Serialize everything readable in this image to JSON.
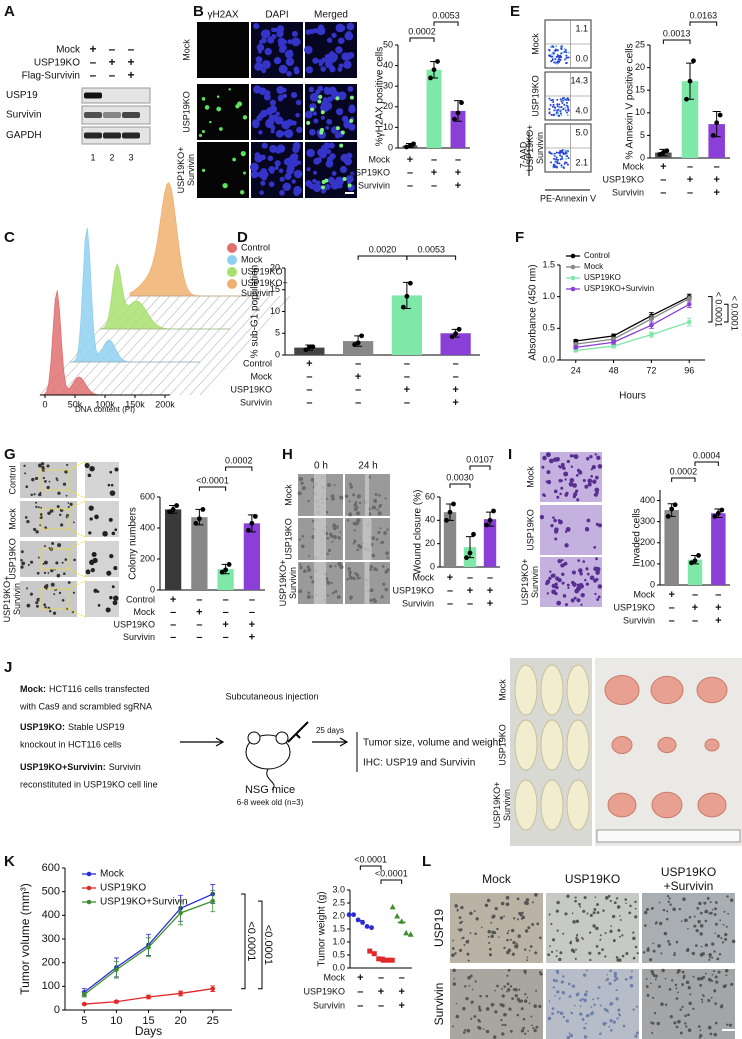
{
  "panel_labels": [
    "A",
    "B",
    "C",
    "D",
    "E",
    "F",
    "G",
    "H",
    "I",
    "J",
    "K",
    "L"
  ],
  "blot": {
    "rows": [
      {
        "label": "Mock",
        "signs": [
          "+",
          "–",
          "–"
        ]
      },
      {
        "label": "USP19KO",
        "signs": [
          "–",
          "+",
          "+"
        ]
      },
      {
        "label": "Flag-Survivin",
        "signs": [
          "–",
          "–",
          "+"
        ]
      }
    ],
    "bands": [
      "USP19",
      "Survivin",
      "GAPDH"
    ],
    "lanes": [
      1,
      2,
      3
    ]
  },
  "imaging": {
    "columns": [
      "γH2AX",
      "DAPI",
      "Merged"
    ],
    "rows": [
      "Mock",
      "USP19KO",
      [
        "USP19KO+",
        "Survivin"
      ]
    ]
  },
  "flow": {
    "rows": [
      {
        "label": "Mock",
        "upper": "1.1",
        "lower": "0.0"
      },
      {
        "label": "USP19KO",
        "upper": "14.3",
        "lower": "4.0"
      },
      {
        "label": [
          "USP19KO+",
          "Survivin"
        ],
        "upper": "5.0",
        "lower": "2.1"
      }
    ],
    "ylabel": "7-AAD",
    "xlabel": "PE-Annexin V"
  },
  "colony_images": {
    "rows": [
      "Control",
      "Mock",
      "USP19KO",
      [
        "USP19KO+",
        "Survivin"
      ]
    ]
  },
  "wound_images": {
    "columns": [
      "0 h",
      "24 h"
    ],
    "rows": [
      "Mock",
      "USP19KO",
      [
        "USP19KO+",
        "Survivin"
      ]
    ]
  },
  "invasion_images": {
    "rows": [
      "Mock",
      "USP19KO",
      [
        "USP19KO+",
        "Survivin"
      ]
    ]
  },
  "schematic": {
    "groups": [
      {
        "head": "Mock:",
        "lines": [
          "HCT116 cells transfected",
          "with Cas9 and scrambled sgRNA"
        ]
      },
      {
        "head": "USP19KO:",
        "lines": [
          "Stable USP19",
          "knockout in HCT116 cells"
        ]
      },
      {
        "head": "USP19KO+Survivin:",
        "lines": [
          "Survivin",
          "reconstituted in USP19KO cell line"
        ]
      }
    ],
    "injection": "Subcutaneous injection",
    "mice": "NSG mice",
    "age": "6-8 week old (n=3)",
    "duration": "25 days",
    "outcomes": [
      "Tumor size, volume and weight",
      "IHC: USP19 and Survivin"
    ],
    "photo_rows": [
      "Mock",
      "USP19KO",
      [
        "USP19KO+",
        "Survivin"
      ]
    ]
  },
  "ihc": {
    "columns": [
      "Mock",
      "USP19KO",
      [
        "USP19KO",
        "+Survivin"
      ]
    ],
    "rows": [
      "USP19",
      "Survivin"
    ]
  },
  "chart_data": [
    {
      "type": "bar",
      "ylabel": "%γH2AX positive cells",
      "values": [
        1.2,
        38,
        18
      ],
      "errors": [
        1,
        4,
        5
      ],
      "points": [
        [
          0.5,
          1,
          2
        ],
        [
          34,
          38,
          42
        ],
        [
          14,
          17,
          22
        ]
      ],
      "colors": [
        "#555555",
        "#7de8a8",
        "#8a3fd6"
      ],
      "ylim": [
        0,
        50
      ],
      "yticks": [
        0,
        10,
        20,
        30,
        40,
        50
      ],
      "conditions": [
        {
          "name": "Mock",
          "signs": [
            "+",
            "–",
            "–"
          ]
        },
        {
          "name": "USP19KO",
          "signs": [
            "–",
            "+",
            "+"
          ]
        },
        {
          "name": "Survivin",
          "signs": [
            "–",
            "–",
            "+"
          ]
        }
      ],
      "annotations": [
        "0.0002",
        "0.0053"
      ]
    },
    {
      "type": "bar",
      "ylabel": "% Annexin V positive cells",
      "values": [
        1.2,
        17,
        7.5
      ],
      "errors": [
        0.7,
        4,
        2.8
      ],
      "points": [
        [
          0.8,
          1.2,
          1.6
        ],
        [
          13,
          17,
          21.5
        ],
        [
          5,
          7.8,
          9.5
        ]
      ],
      "colors": [
        "#555555",
        "#7de8a8",
        "#8a3fd6"
      ],
      "ylim": [
        0,
        25
      ],
      "yticks": [
        0,
        5,
        10,
        15,
        20,
        25
      ],
      "conditions": [
        {
          "name": "Mock",
          "signs": [
            "+",
            "–",
            "–"
          ]
        },
        {
          "name": "USP19KO",
          "signs": [
            "–",
            "+",
            "+"
          ]
        },
        {
          "name": "Survivin",
          "signs": [
            "–",
            "–",
            "+"
          ]
        }
      ],
      "annotations": [
        "0.0013",
        "0.0163"
      ]
    },
    {
      "type": "ridge",
      "xlabel": "DNA content (PI)",
      "series": [
        {
          "name": "Control",
          "color": "#e07070"
        },
        {
          "name": "Mock",
          "color": "#8fd0f0"
        },
        {
          "name": "USP19KO",
          "color": "#a8e070"
        },
        {
          "name": [
            "USP19KO+",
            "Survivin"
          ],
          "color": "#f0b070"
        }
      ],
      "xlim": [
        0,
        200000
      ],
      "xticks": [
        0,
        {
          "value": 50000,
          "label": "50k"
        },
        {
          "value": 100000,
          "label": "100k"
        },
        {
          "value": 150000,
          "label": "150k"
        },
        {
          "value": 200000,
          "label": "200k"
        }
      ]
    },
    {
      "type": "bar",
      "ylabel": "% sub-G1 population",
      "values": [
        1.7,
        3.2,
        13.7,
        5.0
      ],
      "errors": [
        0.6,
        1.2,
        3,
        0.9
      ],
      "points": [
        [
          1.2,
          1.8,
          1.9
        ],
        [
          2.4,
          2.8,
          4.4
        ],
        [
          11,
          13.5,
          16.5
        ],
        [
          4.2,
          4.9,
          5.9
        ]
      ],
      "colors": [
        "#444444",
        "#888888",
        "#7de8a8",
        "#8a3fd6"
      ],
      "ylim": [
        0,
        20
      ],
      "yticks": [
        0,
        5,
        10,
        15,
        20
      ],
      "conditions": [
        {
          "name": "Control",
          "signs": [
            "+",
            "–",
            "–",
            "–"
          ]
        },
        {
          "name": "Mock",
          "signs": [
            "–",
            "+",
            "–",
            "–"
          ]
        },
        {
          "name": "USP19KO",
          "signs": [
            "–",
            "–",
            "+",
            "+"
          ]
        },
        {
          "name": "Survivin",
          "signs": [
            "–",
            "–",
            "–",
            "+"
          ]
        }
      ],
      "annotations": [
        "0.0020",
        "0.0053"
      ]
    },
    {
      "type": "line",
      "xlabel": "Hours",
      "ylabel": "Absorbance (450 nm)",
      "x": [
        24,
        48,
        72,
        96
      ],
      "xlim": [
        14,
        106
      ],
      "xticks": [
        24,
        48,
        72,
        96
      ],
      "ylim": [
        0,
        1.5
      ],
      "yticks": [
        {
          "value": 0,
          "label": "0.0"
        },
        0.5,
        {
          "value": 1,
          "label": "1.0"
        },
        1.5
      ],
      "series": [
        {
          "name": "Control",
          "color": "#000000",
          "values": [
            0.3,
            0.38,
            0.7,
            1.0
          ],
          "errors": [
            0.02,
            0.03,
            0.05,
            0.04
          ]
        },
        {
          "name": "Mock",
          "color": "#888888",
          "values": [
            0.25,
            0.33,
            0.65,
            0.97
          ],
          "errors": [
            0.02,
            0.03,
            0.05,
            0.04
          ]
        },
        {
          "name": "USP19KO",
          "color": "#7de8a8",
          "values": [
            0.15,
            0.22,
            0.4,
            0.6
          ],
          "errors": [
            0.02,
            0.03,
            0.04,
            0.06
          ]
        },
        {
          "name": "USP19KO+Survivin",
          "color": "#8a3fd6",
          "values": [
            0.2,
            0.28,
            0.55,
            0.88
          ],
          "errors": [
            0.02,
            0.03,
            0.05,
            0.05
          ]
        }
      ],
      "annotations": [
        "< 0.0001",
        "< 0.0001"
      ]
    },
    {
      "type": "bar",
      "ylabel": "Colony numbers",
      "values": [
        520,
        470,
        135,
        430
      ],
      "errors": [
        25,
        50,
        30,
        55
      ],
      "points": [
        [
          505,
          520,
          545
        ],
        [
          430,
          460,
          520
        ],
        [
          115,
          130,
          165
        ],
        [
          385,
          430,
          475
        ]
      ],
      "colors": [
        "#3a3a3a",
        "#888888",
        "#7de8a8",
        "#8a3fd6"
      ],
      "ylim": [
        0,
        600
      ],
      "yticks": [
        0,
        200,
        400,
        600
      ],
      "conditions": [
        {
          "name": "Control",
          "signs": [
            "+",
            "–",
            "–",
            "–"
          ]
        },
        {
          "name": "Mock",
          "signs": [
            "–",
            "+",
            "–",
            "–"
          ]
        },
        {
          "name": "USP19KO",
          "signs": [
            "–",
            "–",
            "+",
            "+"
          ]
        },
        {
          "name": "Survivin",
          "signs": [
            "–",
            "–",
            "–",
            "+"
          ]
        }
      ],
      "annotations": [
        "<0.0001",
        "0.0002"
      ]
    },
    {
      "type": "bar",
      "ylabel": "Wound closure (%)",
      "values": [
        47,
        17,
        41
      ],
      "errors": [
        7,
        9,
        6
      ],
      "points": [
        [
          40,
          47,
          54
        ],
        [
          8,
          12,
          28
        ],
        [
          36,
          40,
          48
        ]
      ],
      "colors": [
        "#888888",
        "#7de8a8",
        "#8a3fd6"
      ],
      "ylim": [
        0,
        60
      ],
      "yticks": [
        0,
        20,
        40,
        60
      ],
      "conditions": [
        {
          "name": "Mock",
          "signs": [
            "+",
            "–",
            "–"
          ]
        },
        {
          "name": "USP19KO",
          "signs": [
            "–",
            "+",
            "+"
          ]
        },
        {
          "name": "Survivin",
          "signs": [
            "–",
            "–",
            "+"
          ]
        }
      ],
      "annotations": [
        "0.0030",
        "0.0107"
      ]
    },
    {
      "type": "bar",
      "ylabel": "Invaded cells",
      "values": [
        355,
        120,
        340
      ],
      "errors": [
        30,
        20,
        20
      ],
      "points": [
        [
          325,
          360,
          380
        ],
        [
          105,
          115,
          140
        ],
        [
          325,
          340,
          355
        ]
      ],
      "colors": [
        "#888888",
        "#7de8a8",
        "#8a3fd6"
      ],
      "ylim": [
        0,
        450
      ],
      "yticks": [
        0,
        100,
        200,
        300,
        400
      ],
      "conditions": [
        {
          "name": "Mock",
          "signs": [
            "+",
            "–",
            "–"
          ]
        },
        {
          "name": "USP19KO",
          "signs": [
            "–",
            "+",
            "+"
          ]
        },
        {
          "name": "Survivin",
          "signs": [
            "–",
            "–",
            "+"
          ]
        }
      ],
      "annotations": [
        "0.0002",
        "0.0004"
      ]
    },
    {
      "type": "line",
      "xlabel": "Days",
      "ylabel": "Tumor volume (mm³)",
      "x": [
        5,
        10,
        15,
        20,
        25
      ],
      "xlim": [
        2,
        28
      ],
      "xticks": [
        5,
        10,
        15,
        20,
        25
      ],
      "ylim": [
        0,
        600
      ],
      "yticks": [
        0,
        100,
        200,
        300,
        400,
        500,
        600
      ],
      "series": [
        {
          "name": "Mock",
          "color": "#2b2bd6",
          "values": [
            75,
            180,
            275,
            430,
            490
          ],
          "errors": [
            15,
            40,
            45,
            55,
            40
          ]
        },
        {
          "name": "USP19KO",
          "color": "#e02828",
          "values": [
            25,
            35,
            55,
            70,
            90
          ],
          "errors": [
            3,
            5,
            8,
            10,
            12
          ]
        },
        {
          "name": "USP19KO+Survivin",
          "color": "#3f8f2f",
          "values": [
            65,
            170,
            265,
            410,
            460
          ],
          "errors": [
            10,
            35,
            40,
            50,
            45
          ]
        }
      ],
      "annotations": [
        "<0.0001",
        "<0.0001"
      ]
    },
    {
      "type": "dot",
      "ylabel": "Tumor weight (g)",
      "values": [
        1.82,
        0.41,
        1.76
      ],
      "points": [
        [
          2.05,
          2.05,
          1.85,
          1.75,
          1.6,
          1.55
        ],
        [
          0.65,
          0.55,
          0.35,
          0.3,
          0.3,
          0.3
        ],
        [
          2.35,
          2.0,
          1.8,
          1.35,
          1.3
        ]
      ],
      "colors": [
        "#2b2bd6",
        "#e02828",
        "#3f8f2f"
      ],
      "markers": [
        "circle",
        "square",
        "triangle"
      ],
      "ylim": [
        0,
        3
      ],
      "yticks": [
        {
          "value": 0,
          "label": "0.0"
        },
        0.5,
        {
          "value": 1,
          "label": "1.0"
        },
        1.5,
        {
          "value": 2,
          "label": "2.0"
        },
        2.5,
        {
          "value": 3,
          "label": "3.0"
        }
      ],
      "conditions": [
        {
          "name": "Mock",
          "signs": [
            "+",
            "–",
            "–"
          ]
        },
        {
          "name": "USP19KO",
          "signs": [
            "–",
            "+",
            "+"
          ]
        },
        {
          "name": "Survivin",
          "signs": [
            "–",
            "–",
            "+"
          ]
        }
      ],
      "annotations": [
        "<0.0001",
        "<0.0001"
      ]
    }
  ]
}
